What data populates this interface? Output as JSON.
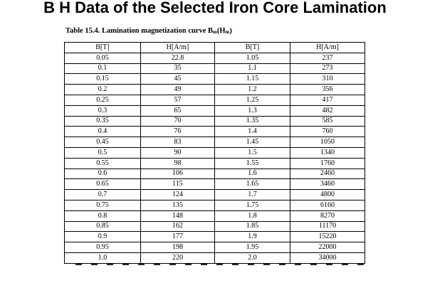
{
  "slide": {
    "title": "B H Data of the Selected Iron Core Lamination"
  },
  "table": {
    "caption_prefix": "Table 15.4. Lamination magnetization curve B",
    "caption_sub1": "m",
    "caption_mid": "(H",
    "caption_sub2": "m",
    "caption_end": ")",
    "headers": [
      "B[T]",
      "H[A/m]",
      "B[T]",
      "H[A/m]"
    ],
    "rows": [
      [
        "0.05",
        "22.8",
        "1.05",
        "237"
      ],
      [
        "0.1",
        "35",
        "1.1",
        "273"
      ],
      [
        "0.15",
        "45",
        "1.15",
        "310"
      ],
      [
        "0.2",
        "49",
        "1.2",
        "356"
      ],
      [
        "0.25",
        "57",
        "1.25",
        "417"
      ],
      [
        "0.3",
        "65",
        "1.3",
        "482"
      ],
      [
        "0.35",
        "70",
        "1.35",
        "585"
      ],
      [
        "0.4",
        "76",
        "1.4",
        "760"
      ],
      [
        "0.45",
        "83",
        "1.45",
        "1050"
      ],
      [
        "0.5",
        "90",
        "1.5",
        "1340"
      ],
      [
        "0.55",
        "98",
        "1.55",
        "1760"
      ],
      [
        "0.6",
        "106",
        "1.6",
        "2460"
      ],
      [
        "0.65",
        "115",
        "1.65",
        "3460"
      ],
      [
        "0.7",
        "124",
        "1.7",
        "4800"
      ],
      [
        "0.75",
        "135",
        "1.75",
        "6160"
      ],
      [
        "0.8",
        "148",
        "1.8",
        "8270"
      ],
      [
        "0.85",
        "162",
        "1.85",
        "11170"
      ],
      [
        "0.9",
        "177",
        "1.9",
        "15220"
      ],
      [
        "0.95",
        "198",
        "1.95",
        "22000"
      ],
      [
        "1.0",
        "220",
        "2.0",
        "34000"
      ]
    ]
  }
}
